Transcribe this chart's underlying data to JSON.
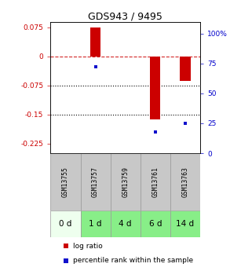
{
  "title": "GDS943 / 9495",
  "samples": [
    "GSM13755",
    "GSM13757",
    "GSM13759",
    "GSM13761",
    "GSM13763"
  ],
  "time_labels": [
    "0 d",
    "1 d",
    "4 d",
    "6 d",
    "14 d"
  ],
  "log_ratios": [
    0.0,
    0.075,
    0.0,
    -0.163,
    -0.063
  ],
  "percentile_ranks": [
    null,
    72,
    null,
    18,
    25
  ],
  "ylim_left": [
    -0.25,
    0.09
  ],
  "ylim_right": [
    0,
    110
  ],
  "yticks_left": [
    0.075,
    0,
    -0.075,
    -0.15,
    -0.225
  ],
  "yticks_right": [
    100,
    75,
    50,
    25,
    0
  ],
  "bar_color": "#cc0000",
  "dot_color": "#1111cc",
  "bar_width": 0.35,
  "background_plot": "#ffffff",
  "background_gsm": "#c8c8c8",
  "background_time_0": "#eeffee",
  "background_time_other": "#88ee88",
  "title_fontsize": 9,
  "tick_fontsize": 6.5,
  "gsm_fontsize": 5.8,
  "time_fontsize": 7.5,
  "legend_fontsize": 6.5
}
